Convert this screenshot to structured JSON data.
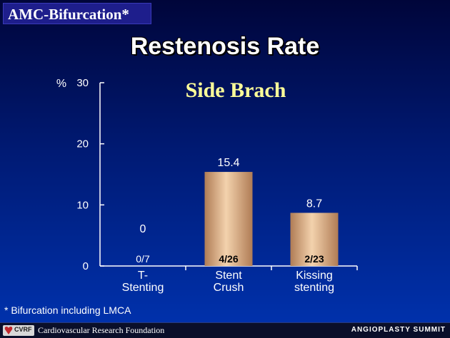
{
  "header": {
    "badge": "AMC-Bifurcation*",
    "title": "Restenosis Rate"
  },
  "chart_data": {
    "type": "bar",
    "title": "Side Brach",
    "ylabel": "%",
    "ylim": [
      0,
      30
    ],
    "yticks": [
      0,
      10,
      20,
      30
    ],
    "categories": [
      [
        "T-",
        "Stenting"
      ],
      [
        "Stent",
        "Crush"
      ],
      [
        "Kissing",
        "stenting"
      ]
    ],
    "values": [
      0,
      15.4,
      8.7
    ],
    "value_labels": [
      "0",
      "15.4",
      "8.7"
    ],
    "count_labels": [
      "0/7",
      "4/26",
      "2/23"
    ],
    "colors": {
      "bar_light": "#f3d2ad",
      "bar_dark": "#b07c55",
      "axis": "#ffffff",
      "title": "#ffff99"
    }
  },
  "footnote": "* Bifurcation including LMCA",
  "footer": {
    "logo_text": "CVRF",
    "organization": "Cardiovascular Research Foundation",
    "event": "ANGIOPLASTY SUMMIT"
  }
}
